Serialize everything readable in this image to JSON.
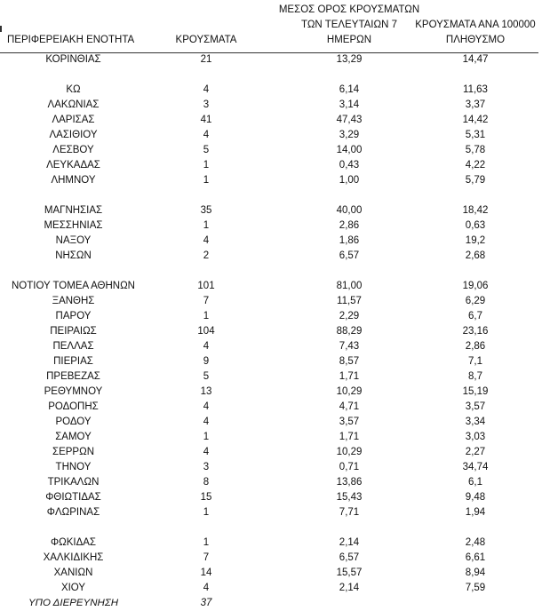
{
  "headers": {
    "region": "ΠΕΡΙΦΕΡΕΙΑΚΗ ΕΝΟΤΗΤΑ",
    "cases": "ΚΡΟΥΣΜΑΤΑ",
    "avg_line1": "ΜΕΣΟΣ ΟΡΟΣ ΚΡΟΥΣΜΑΤΩΝ",
    "avg_line2": "ΤΩΝ ΤΕΛΕΥΤΑΙΩΝ 7",
    "avg_line3": "ΗΜΕΡΩΝ",
    "per100k_line1": "ΚΡΟΥΣΜΑΤΑ ΑΝΑ 100000",
    "per100k_line2": "ΠΛΗΘΥΣΜΟ"
  },
  "rows": [
    {
      "region": "ΚΟΡΙΝΘΙΑΣ",
      "cases": "21",
      "avg7": "13,29",
      "per100k": "14,47"
    },
    null,
    {
      "region": "ΚΩ",
      "cases": "4",
      "avg7": "6,14",
      "per100k": "11,63"
    },
    {
      "region": "ΛΑΚΩΝΙΑΣ",
      "cases": "3",
      "avg7": "3,14",
      "per100k": "3,37"
    },
    {
      "region": "ΛΑΡΙΣΑΣ",
      "cases": "41",
      "avg7": "47,43",
      "per100k": "14,42"
    },
    {
      "region": "ΛΑΣΙΘΙΟΥ",
      "cases": "4",
      "avg7": "3,29",
      "per100k": "5,31"
    },
    {
      "region": "ΛΕΣΒΟΥ",
      "cases": "5",
      "avg7": "14,00",
      "per100k": "5,78"
    },
    {
      "region": "ΛΕΥΚΑΔΑΣ",
      "cases": "1",
      "avg7": "0,43",
      "per100k": "4,22"
    },
    {
      "region": "ΛΗΜΝΟΥ",
      "cases": "1",
      "avg7": "1,00",
      "per100k": "5,79"
    },
    null,
    {
      "region": "ΜΑΓΝΗΣΙΑΣ",
      "cases": "35",
      "avg7": "40,00",
      "per100k": "18,42"
    },
    {
      "region": "ΜΕΣΣΗΝΙΑΣ",
      "cases": "1",
      "avg7": "2,86",
      "per100k": "0,63"
    },
    {
      "region": "ΝΑΞΟΥ",
      "cases": "4",
      "avg7": "1,86",
      "per100k": "19,2"
    },
    {
      "region": "ΝΗΣΩΝ",
      "cases": "2",
      "avg7": "6,57",
      "per100k": "2,68"
    },
    null,
    {
      "region": "ΝΟΤΙΟΥ ΤΟΜΕΑ ΑΘΗΝΩΝ",
      "cases": "101",
      "avg7": "81,00",
      "per100k": "19,06"
    },
    {
      "region": "ΞΑΝΘΗΣ",
      "cases": "7",
      "avg7": "11,57",
      "per100k": "6,29"
    },
    {
      "region": "ΠΑΡΟΥ",
      "cases": "1",
      "avg7": "2,29",
      "per100k": "6,7"
    },
    {
      "region": "ΠΕΙΡΑΙΩΣ",
      "cases": "104",
      "avg7": "88,29",
      "per100k": "23,16"
    },
    {
      "region": "ΠΕΛΛΑΣ",
      "cases": "4",
      "avg7": "7,43",
      "per100k": "2,86"
    },
    {
      "region": "ΠΙΕΡΙΑΣ",
      "cases": "9",
      "avg7": "8,57",
      "per100k": "7,1"
    },
    {
      "region": "ΠΡΕΒΕΖΑΣ",
      "cases": "5",
      "avg7": "1,71",
      "per100k": "8,7"
    },
    {
      "region": "ΡΕΘΥΜΝΟΥ",
      "cases": "13",
      "avg7": "10,29",
      "per100k": "15,19"
    },
    {
      "region": "ΡΟΔΟΠΗΣ",
      "cases": "4",
      "avg7": "4,71",
      "per100k": "3,57"
    },
    {
      "region": "ΡΟΔΟΥ",
      "cases": "4",
      "avg7": "3,57",
      "per100k": "3,34"
    },
    {
      "region": "ΣΑΜΟΥ",
      "cases": "1",
      "avg7": "1,71",
      "per100k": "3,03"
    },
    {
      "region": "ΣΕΡΡΩΝ",
      "cases": "4",
      "avg7": "10,29",
      "per100k": "2,27"
    },
    {
      "region": "ΤΗΝΟΥ",
      "cases": "3",
      "avg7": "0,71",
      "per100k": "34,74"
    },
    {
      "region": "ΤΡΙΚΑΛΩΝ",
      "cases": "8",
      "avg7": "13,86",
      "per100k": "6,1"
    },
    {
      "region": "ΦΘΙΩΤΙΔΑΣ",
      "cases": "15",
      "avg7": "15,43",
      "per100k": "9,48"
    },
    {
      "region": "ΦΛΩΡΙΝΑΣ",
      "cases": "1",
      "avg7": "7,71",
      "per100k": "1,94"
    },
    null,
    {
      "region": "ΦΩΚΙΔΑΣ",
      "cases": "1",
      "avg7": "2,14",
      "per100k": "2,48"
    },
    {
      "region": "ΧΑΛΚΙΔΙΚΗΣ",
      "cases": "7",
      "avg7": "6,57",
      "per100k": "6,61"
    },
    {
      "region": "ΧΑΝΙΩΝ",
      "cases": "14",
      "avg7": "15,57",
      "per100k": "8,94"
    },
    {
      "region": "ΧΙΟΥ",
      "cases": "4",
      "avg7": "2,14",
      "per100k": "7,59"
    },
    {
      "region": "ΥΠΟ ΔΙΕΡΕΥΝΗΣΗ",
      "cases": "37",
      "avg7": "",
      "per100k": "",
      "italic": true
    }
  ]
}
